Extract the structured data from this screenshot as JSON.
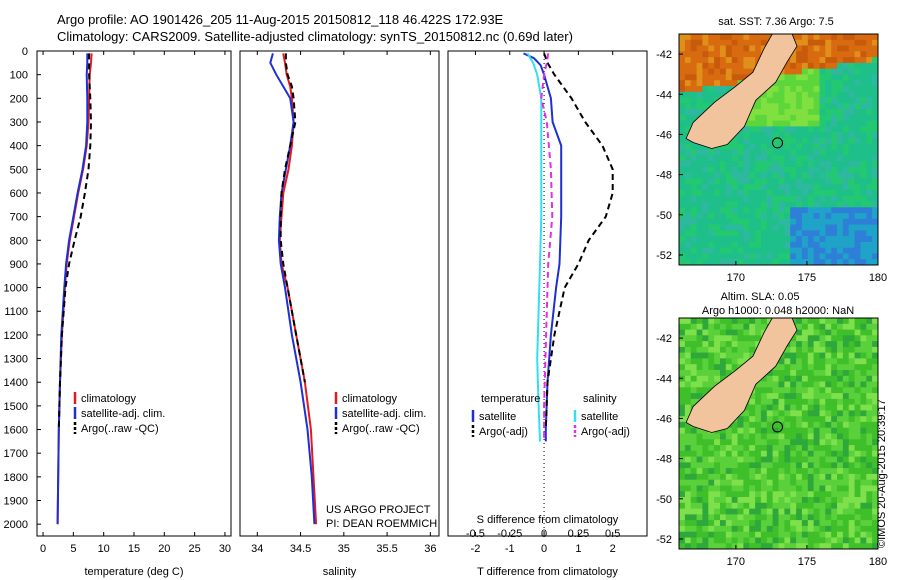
{
  "header": {
    "line1": "Argo profile: AO 1901426_205 11-Aug-2015 20150812_118 46.422S 172.93E",
    "line2": "Climatology: CARS2009. Satellite-adjusted climatology: synTS_20150812.nc (0.69d later)"
  },
  "credit": "©IMOS 20-Aug-2015 20:39:17",
  "colors": {
    "climatology": "#e41a1c",
    "satellite": "#1f2fd6",
    "argo": "#000000",
    "salinity_satellite": "#30e0ee",
    "salinity_argo": "#e22fe2",
    "land": "#f2c49e"
  },
  "chart_data": [
    {
      "type": "line",
      "id": "temperature",
      "xlabel": "temperature (deg C)",
      "xlim": [
        -1,
        31
      ],
      "xticks": [
        0,
        5,
        10,
        15,
        20,
        25,
        30
      ],
      "ylim": [
        0,
        2050
      ],
      "yticks": [
        0,
        100,
        200,
        300,
        400,
        500,
        600,
        700,
        800,
        900,
        1000,
        1100,
        1200,
        1300,
        1400,
        1500,
        1600,
        1700,
        1800,
        1900,
        2000
      ],
      "legend": [
        "climatology",
        "satellite-adj. clim.",
        "Argo(..raw -QC)"
      ],
      "series": [
        {
          "name": "climatology",
          "depth": [
            10,
            50,
            100,
            200,
            300,
            400,
            500,
            600,
            700,
            800,
            900,
            1000,
            1200,
            1400,
            1600,
            1800,
            2000
          ],
          "values": [
            8.0,
            7.9,
            7.7,
            7.6,
            7.5,
            7.2,
            6.6,
            5.8,
            5.1,
            4.4,
            3.9,
            3.6,
            3.1,
            2.8,
            2.6,
            2.5,
            2.4
          ]
        },
        {
          "name": "satellite-adj. clim.",
          "depth": [
            10,
            50,
            100,
            200,
            300,
            400,
            500,
            600,
            700,
            800,
            900,
            1000,
            1200,
            1400,
            1600,
            1800,
            2000
          ],
          "values": [
            7.3,
            7.3,
            7.2,
            7.3,
            7.3,
            7.1,
            6.5,
            5.7,
            5.0,
            4.3,
            3.8,
            3.5,
            3.0,
            2.8,
            2.6,
            2.5,
            2.4
          ]
        },
        {
          "name": "Argo(..raw -QC)",
          "depth": [
            10,
            50,
            100,
            200,
            300,
            400,
            500,
            600,
            700,
            800,
            900,
            1000,
            1200,
            1400,
            1600
          ],
          "values": [
            7.6,
            7.6,
            7.6,
            7.8,
            7.9,
            7.8,
            7.5,
            6.9,
            6.2,
            5.2,
            4.3,
            3.7,
            3.1,
            2.8,
            2.6
          ]
        }
      ]
    },
    {
      "type": "line",
      "id": "salinity",
      "xlabel": "salinity",
      "xlim": [
        33.8,
        36.1
      ],
      "xticks": [
        34,
        34.5,
        35,
        35.5,
        36
      ],
      "ylim": [
        0,
        2050
      ],
      "legend": [
        "climatology",
        "satellite-adj. clim.",
        "Argo(..raw -QC)"
      ],
      "annotation": [
        "US ARGO PROJECT",
        "PI: DEAN ROEMMICH"
      ],
      "series": [
        {
          "name": "climatology",
          "depth": [
            10,
            50,
            100,
            150,
            200,
            300,
            400,
            500,
            600,
            700,
            800,
            900,
            1000,
            1200,
            1400,
            1600,
            1800,
            2000
          ],
          "values": [
            34.3,
            34.32,
            34.34,
            34.38,
            34.4,
            34.42,
            34.4,
            34.36,
            34.3,
            34.28,
            34.26,
            34.28,
            34.35,
            34.45,
            34.55,
            34.62,
            34.65,
            34.68
          ]
        },
        {
          "name": "satellite-adj. clim.",
          "depth": [
            10,
            50,
            100,
            150,
            200,
            300,
            400,
            500,
            600,
            700,
            800,
            900,
            1000,
            1200,
            1400,
            1600,
            1800,
            2000
          ],
          "values": [
            34.18,
            34.15,
            34.22,
            34.3,
            34.38,
            34.42,
            34.38,
            34.33,
            34.28,
            34.26,
            34.25,
            34.27,
            34.32,
            34.4,
            34.5,
            34.58,
            34.63,
            34.66
          ]
        },
        {
          "name": "Argo(..raw -QC)",
          "depth": [
            10,
            50,
            100,
            150,
            200,
            300,
            400,
            500,
            600,
            700,
            800,
            900,
            1000,
            1200,
            1400
          ],
          "values": [
            34.33,
            34.33,
            34.35,
            34.4,
            34.42,
            34.44,
            34.38,
            34.32,
            34.28,
            34.27,
            34.27,
            34.3,
            34.35,
            34.45,
            34.55
          ]
        }
      ]
    },
    {
      "type": "line",
      "id": "difference",
      "xlabel": "T difference from climatology",
      "xlabel_top": "S difference from climatology",
      "xlim": [
        -2.8,
        3.0
      ],
      "xticks": [
        -2,
        -1,
        0,
        1,
        2
      ],
      "xticks_top": [
        "-0.5",
        "-0.25",
        "0",
        "0.25",
        "0.5"
      ],
      "ylim": [
        0,
        2050
      ],
      "legend_groups": [
        {
          "title": "temperature",
          "items": [
            "satellite",
            "Argo(-adj)"
          ]
        },
        {
          "title": "salinity",
          "items": [
            "satellite",
            "Argo(-adj)"
          ]
        }
      ],
      "series": [
        {
          "name": "temperature satellite",
          "depth": [
            10,
            30,
            60,
            100,
            150,
            200,
            300,
            400,
            500,
            700,
            900,
            1000,
            1200,
            1400,
            1600,
            1650
          ],
          "values": [
            -0.6,
            -0.3,
            -0.1,
            0.0,
            0.1,
            0.2,
            0.25,
            0.5,
            0.5,
            0.5,
            0.45,
            0.35,
            0.2,
            0.1,
            0.05,
            0.05
          ]
        },
        {
          "name": "temperature Argo(-adj)",
          "depth": [
            10,
            50,
            100,
            200,
            300,
            400,
            500,
            600,
            700,
            800,
            900,
            1000,
            1200,
            1400,
            1600
          ],
          "values": [
            0.0,
            0.1,
            0.3,
            0.8,
            1.2,
            1.7,
            2.0,
            2.0,
            1.8,
            1.3,
            1.0,
            0.6,
            0.3,
            0.1,
            0.05
          ]
        },
        {
          "name": "salinity satellite",
          "depth": [
            10,
            50,
            100,
            200,
            300,
            500,
            700,
            900,
            1100,
            1300,
            1500,
            1650
          ],
          "values": [
            -0.12,
            -0.08,
            -0.05,
            -0.02,
            -0.02,
            -0.02,
            -0.02,
            -0.03,
            -0.04,
            -0.05,
            -0.04,
            -0.03
          ]
        },
        {
          "name": "salinity Argo(-adj)",
          "depth": [
            10,
            50,
            100,
            200,
            300,
            500,
            700,
            900,
            1100,
            1300,
            1500,
            1650
          ],
          "values": [
            0.03,
            0.02,
            0.0,
            -0.02,
            0.02,
            0.05,
            0.06,
            0.03,
            0.02,
            0.01,
            0.0,
            0.0
          ]
        }
      ]
    },
    {
      "type": "heatmap",
      "id": "sst_map",
      "title": "sat. SST: 7.36 Argo: 7.5",
      "xlim": [
        166,
        180
      ],
      "ylim": [
        -52.5,
        -41
      ],
      "xticks": [
        170,
        175,
        180
      ],
      "yticks": [
        -42,
        -44,
        -46,
        -48,
        -50,
        -52
      ],
      "marker": {
        "lon": 172.93,
        "lat": -46.422
      }
    },
    {
      "type": "heatmap",
      "id": "sla_map",
      "title": "Altim. SLA: 0.05",
      "title2": "Argo h1000: 0.048 h2000: NaN",
      "xlim": [
        166,
        180
      ],
      "ylim": [
        -52.5,
        -41
      ],
      "xticks": [
        170,
        175,
        180
      ],
      "yticks": [
        -42,
        -44,
        -46,
        -48,
        -50,
        -52
      ],
      "marker": {
        "lon": 172.93,
        "lat": -46.422
      }
    }
  ]
}
